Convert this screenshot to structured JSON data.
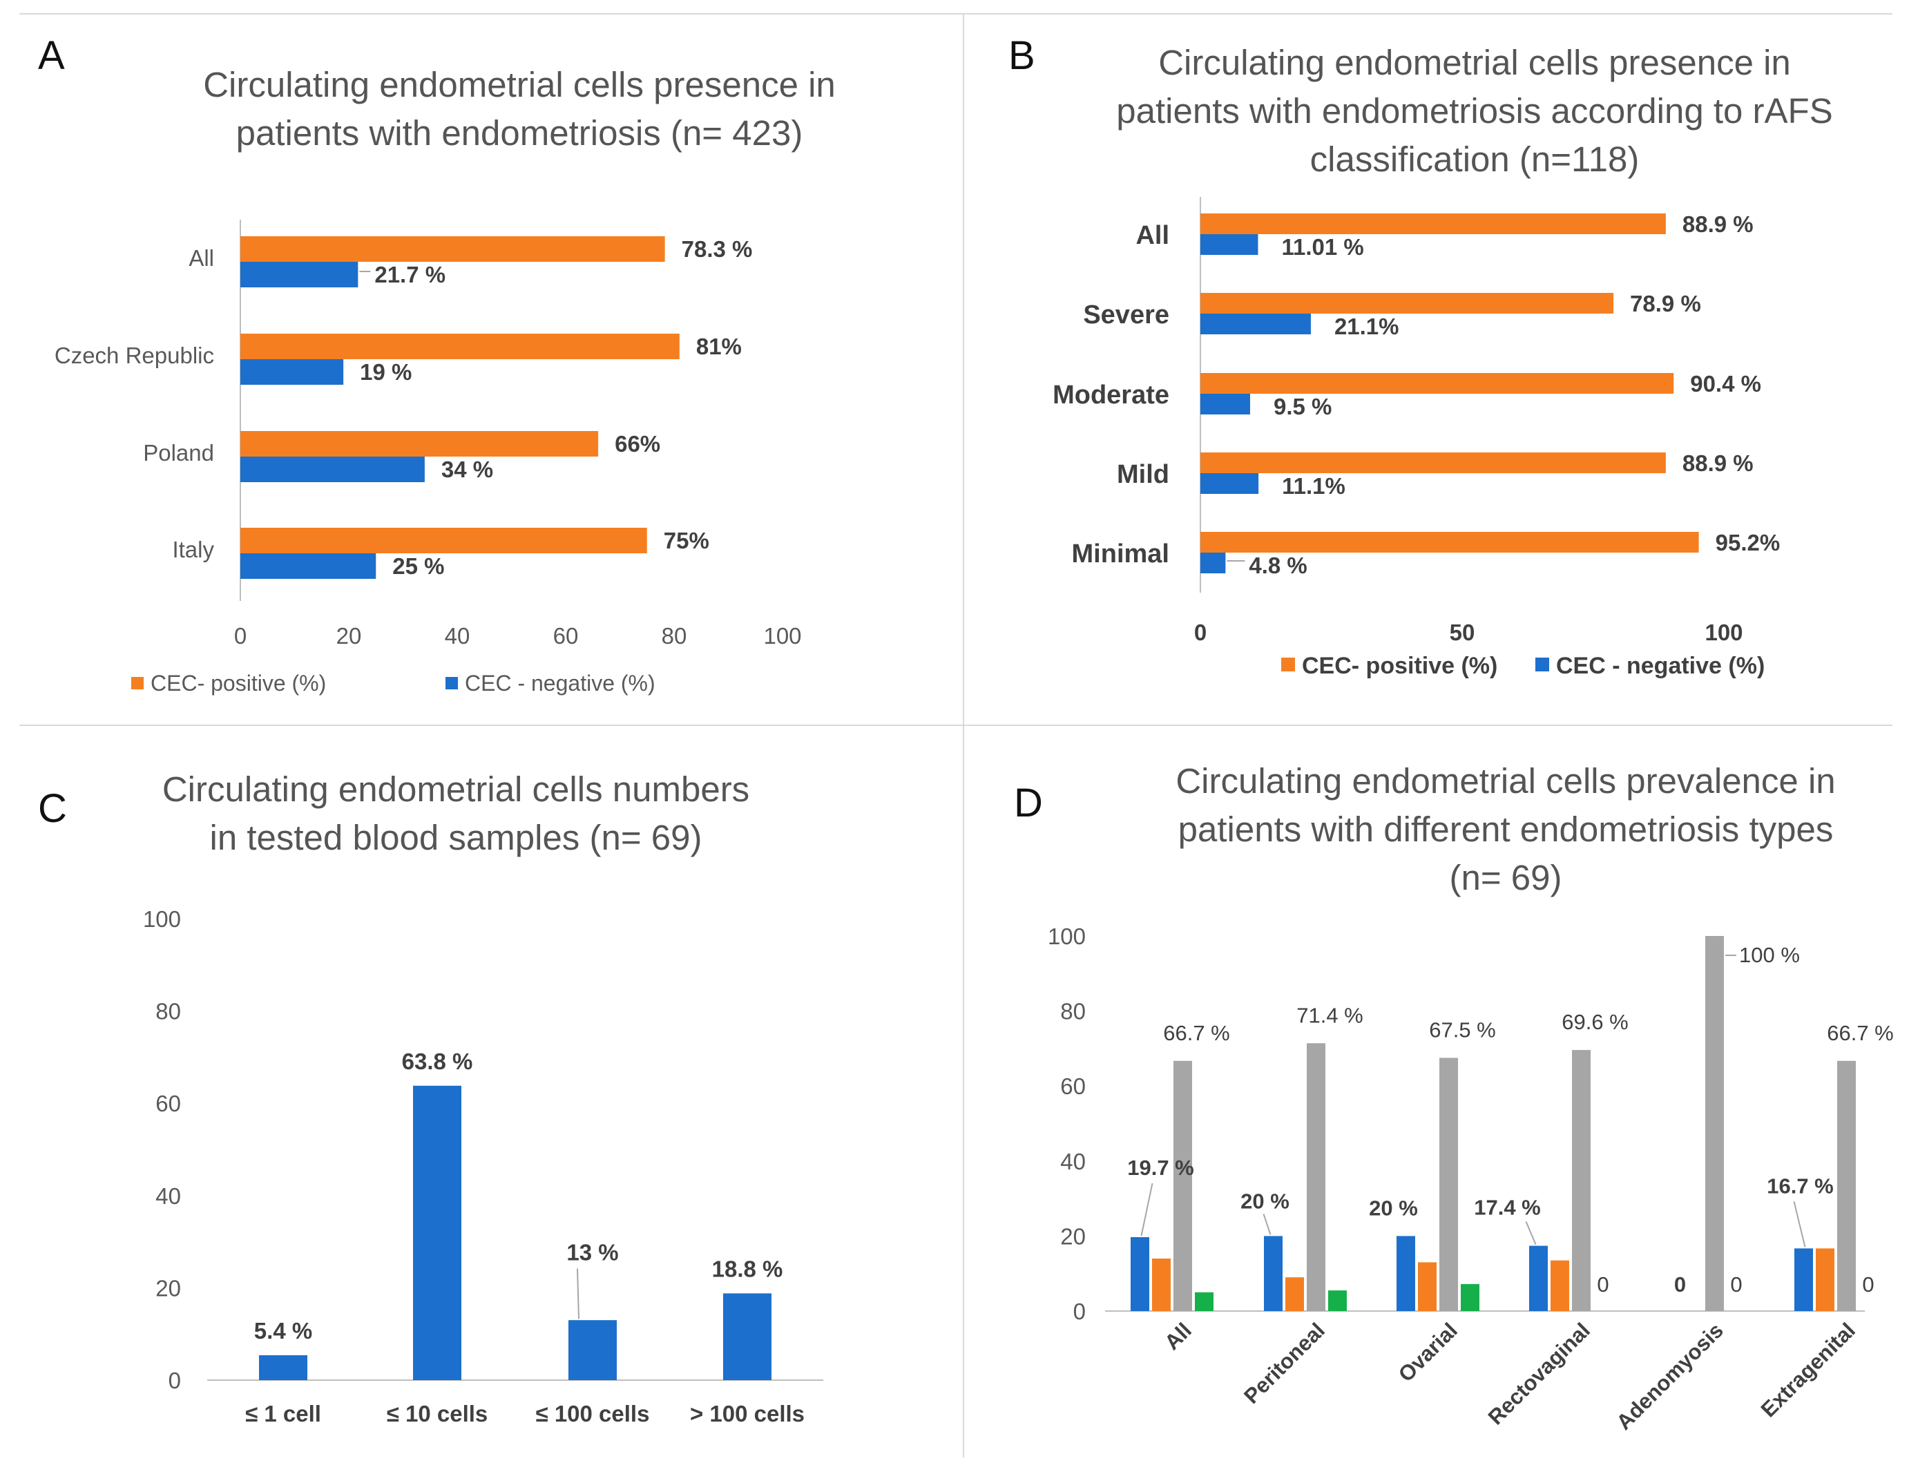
{
  "colors": {
    "positive": "#F57F20",
    "negative": "#1C6FCC",
    "gray": "#A6A6A6",
    "green": "#16B04A",
    "axis": "#BFBFBF",
    "divider": "#D9D9D9"
  },
  "chart_data": [
    {
      "panel": "A",
      "type": "bar",
      "orientation": "horizontal",
      "title_lines": [
        "Circulating endometrial cells presence in",
        "patients with endometriosis (n= 423)"
      ],
      "categories": [
        "All",
        "Czech Republic",
        "Poland",
        "Italy"
      ],
      "series": [
        {
          "name": "CEC- positive (%)",
          "values": [
            78.3,
            81,
            66,
            75
          ],
          "labels": [
            "78.3 %",
            "81%",
            "66%",
            "75%"
          ]
        },
        {
          "name": "CEC - negative (%)",
          "values": [
            21.7,
            19,
            34,
            25
          ],
          "labels": [
            "21.7 %",
            "19 %",
            "34 %",
            "25 %"
          ]
        }
      ],
      "xlim": [
        0,
        100
      ],
      "xticks": [
        "0",
        "20",
        "40",
        "60",
        "80",
        "100"
      ],
      "legend": "bottom"
    },
    {
      "panel": "B",
      "type": "bar",
      "orientation": "horizontal",
      "title_lines": [
        "Circulating endometrial cells presence in",
        "patients with endometriosis according to rAFS",
        "classification  (n=118)"
      ],
      "categories": [
        "All",
        "Severe",
        "Moderate",
        "Mild",
        "Minimal"
      ],
      "series": [
        {
          "name": "CEC- positive (%)",
          "values": [
            88.9,
            78.9,
            90.4,
            88.9,
            95.2
          ],
          "labels": [
            "88.9 %",
            "78.9 %",
            "90.4 %",
            "88.9 %",
            "95.2%"
          ]
        },
        {
          "name": "CEC - negative (%)",
          "values": [
            11.01,
            21.1,
            9.5,
            11.1,
            4.8
          ],
          "labels": [
            "11.01 %",
            "21.1%",
            "9.5 %",
            "11.1%",
            "4.8 %"
          ]
        }
      ],
      "xlim": [
        0,
        100
      ],
      "xticks": [
        "0",
        "50",
        "100"
      ],
      "legend": "bottom"
    },
    {
      "panel": "C",
      "type": "bar",
      "orientation": "vertical",
      "title_lines": [
        "Circulating endometrial cells numbers",
        "in tested blood samples (n= 69)"
      ],
      "categories": [
        "≤ 1 cell",
        "≤ 10 cells",
        "≤ 100 cells",
        "> 100 cells"
      ],
      "values": [
        5.4,
        63.8,
        13,
        18.8
      ],
      "labels": [
        "5.4 %",
        "63.8 %",
        "13 %",
        "18.8 %"
      ],
      "ylim": [
        0,
        100
      ],
      "yticks": [
        "0",
        "20",
        "40",
        "60",
        "80",
        "100"
      ]
    },
    {
      "panel": "D",
      "type": "bar",
      "orientation": "vertical",
      "title_lines": [
        "Circulating endometrial cells prevalence in",
        "patients with different endometriosis types",
        "(n= 69)"
      ],
      "categories": [
        "All",
        "Peritoneal",
        "Ovarial",
        "Rectovaginal",
        "Adenomyosis",
        "Extragenital"
      ],
      "series": [
        {
          "name": "blue",
          "values": [
            19.7,
            20,
            20,
            17.4,
            0,
            16.7
          ]
        },
        {
          "name": "orange",
          "values": [
            14,
            9,
            13,
            13.5,
            0,
            16.7
          ]
        },
        {
          "name": "gray",
          "values": [
            66.7,
            71.4,
            67.5,
            69.6,
            100,
            66.7
          ]
        },
        {
          "name": "green",
          "values": [
            5,
            5.5,
            7.2,
            0,
            0,
            0
          ]
        }
      ],
      "annotations": {
        "blue": [
          "19.7 %",
          "20 %",
          "20 %",
          "17.4 %",
          "0",
          "16.7 %"
        ],
        "gray": [
          "66.7 %",
          "71.4 %",
          "67.5 %",
          "69.6 %",
          "100 %",
          "66.7 %"
        ],
        "green": [
          "",
          "",
          "",
          "0",
          "0",
          "0"
        ]
      },
      "ylim": [
        0,
        100
      ],
      "yticks": [
        "0",
        "20",
        "40",
        "60",
        "80",
        "100"
      ]
    }
  ]
}
